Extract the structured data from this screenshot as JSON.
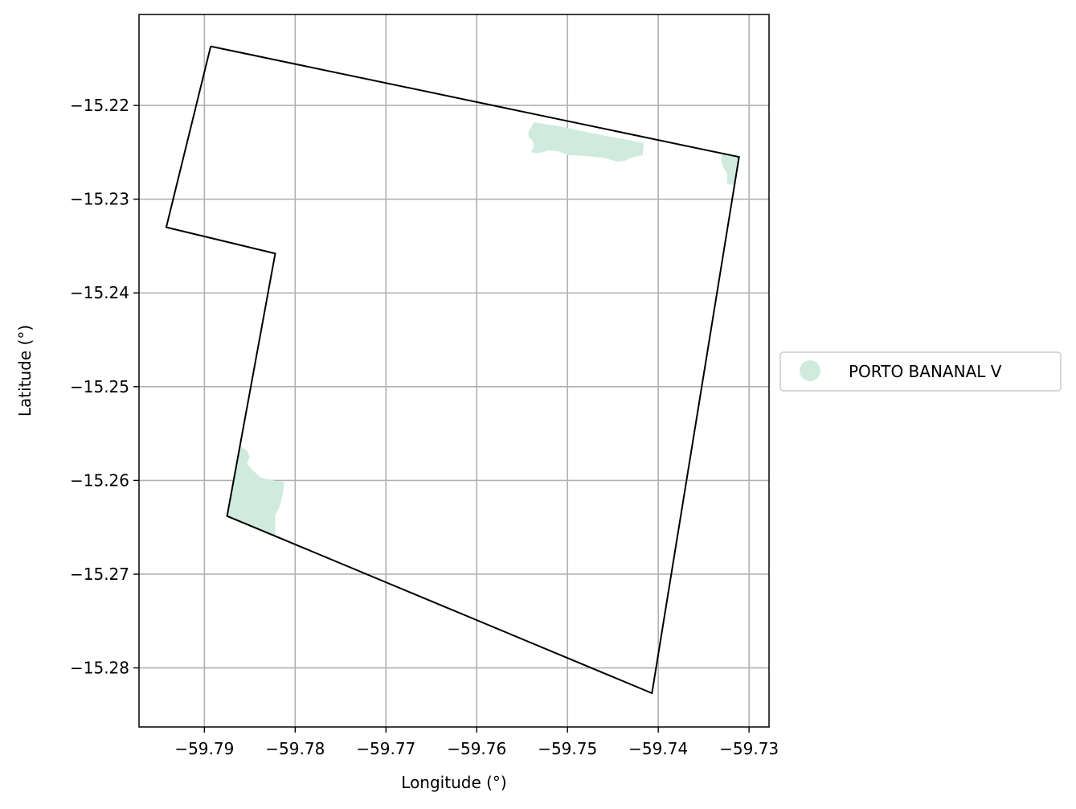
{
  "chart_data": {
    "type": "map",
    "title": "",
    "xlabel": "Longitude (°)",
    "ylabel": "Latitude (°)",
    "xlim": [
      -59.7972,
      -59.7278
    ],
    "ylim": [
      -15.2863,
      -15.2103
    ],
    "xticks": [
      -59.79,
      -59.78,
      -59.77,
      -59.76,
      -59.75,
      -59.74,
      -59.73
    ],
    "xtick_labels": [
      "−59.79",
      "−59.78",
      "−59.77",
      "−59.76",
      "−59.75",
      "−59.74",
      "−59.73"
    ],
    "yticks": [
      -15.22,
      -15.23,
      -15.24,
      -15.25,
      -15.26,
      -15.27,
      -15.28
    ],
    "ytick_labels": [
      "−15.22",
      "−15.23",
      "−15.24",
      "−15.25",
      "−15.26",
      "−15.27",
      "−15.28"
    ],
    "grid": true,
    "boundary": {
      "color": "#000000",
      "coordinates": [
        [
          -59.7893,
          -15.2137
        ],
        [
          -59.7311,
          -15.2255
        ],
        [
          -59.7407,
          -15.2827
        ],
        [
          -59.7875,
          -15.2638
        ],
        [
          -59.7822,
          -15.2358
        ],
        [
          -59.7942,
          -15.233
        ],
        [
          -59.7893,
          -15.2137
        ]
      ]
    },
    "areas": [
      {
        "name": "PORTO BANANAL V",
        "color": "#cfebde",
        "polygons": [
          [
            [
              -59.7537,
              -15.2218
            ],
            [
              -59.751,
              -15.2222
            ],
            [
              -59.7481,
              -15.2228
            ],
            [
              -59.7455,
              -15.2233
            ],
            [
              -59.7416,
              -15.224
            ],
            [
              -59.7417,
              -15.2253
            ],
            [
              -59.743,
              -15.2256
            ],
            [
              -59.7437,
              -15.2259
            ],
            [
              -59.7446,
              -15.226
            ],
            [
              -59.7452,
              -15.2258
            ],
            [
              -59.746,
              -15.2256
            ],
            [
              -59.748,
              -15.2254
            ],
            [
              -59.75,
              -15.2253
            ],
            [
              -59.751,
              -15.2249
            ],
            [
              -59.752,
              -15.2248
            ],
            [
              -59.7528,
              -15.225
            ],
            [
              -59.7535,
              -15.2251
            ],
            [
              -59.754,
              -15.225
            ],
            [
              -59.7537,
              -15.2243
            ],
            [
              -59.7539,
              -15.2237
            ],
            [
              -59.7543,
              -15.2233
            ],
            [
              -59.7543,
              -15.2228
            ],
            [
              -59.7537,
              -15.2218
            ]
          ],
          [
            [
              -59.7311,
              -15.2255
            ],
            [
              -59.7329,
              -15.2251
            ],
            [
              -59.7331,
              -15.2256
            ],
            [
              -59.7329,
              -15.2265
            ],
            [
              -59.7324,
              -15.2273
            ],
            [
              -59.7324,
              -15.2284
            ],
            [
              -59.7315,
              -15.2285
            ],
            [
              -59.7311,
              -15.2255
            ]
          ],
          [
            [
              -59.7875,
              -15.2638
            ],
            [
              -59.786,
              -15.2564
            ],
            [
              -59.7853,
              -15.2568
            ],
            [
              -59.785,
              -15.2575
            ],
            [
              -59.7853,
              -15.2582
            ],
            [
              -59.7848,
              -15.2588
            ],
            [
              -59.7838,
              -15.2597
            ],
            [
              -59.7824,
              -15.26
            ],
            [
              -59.7812,
              -15.2602
            ],
            [
              -59.7814,
              -15.2617
            ],
            [
              -59.7818,
              -15.263
            ],
            [
              -59.7822,
              -15.2637
            ],
            [
              -59.7822,
              -15.2652
            ],
            [
              -59.7822,
              -15.266
            ],
            [
              -59.7875,
              -15.2638
            ]
          ]
        ]
      }
    ],
    "legend": {
      "location": "center right, outside",
      "entries": [
        {
          "label": "PORTO BANANAL V",
          "color": "#cfebde"
        }
      ]
    }
  }
}
